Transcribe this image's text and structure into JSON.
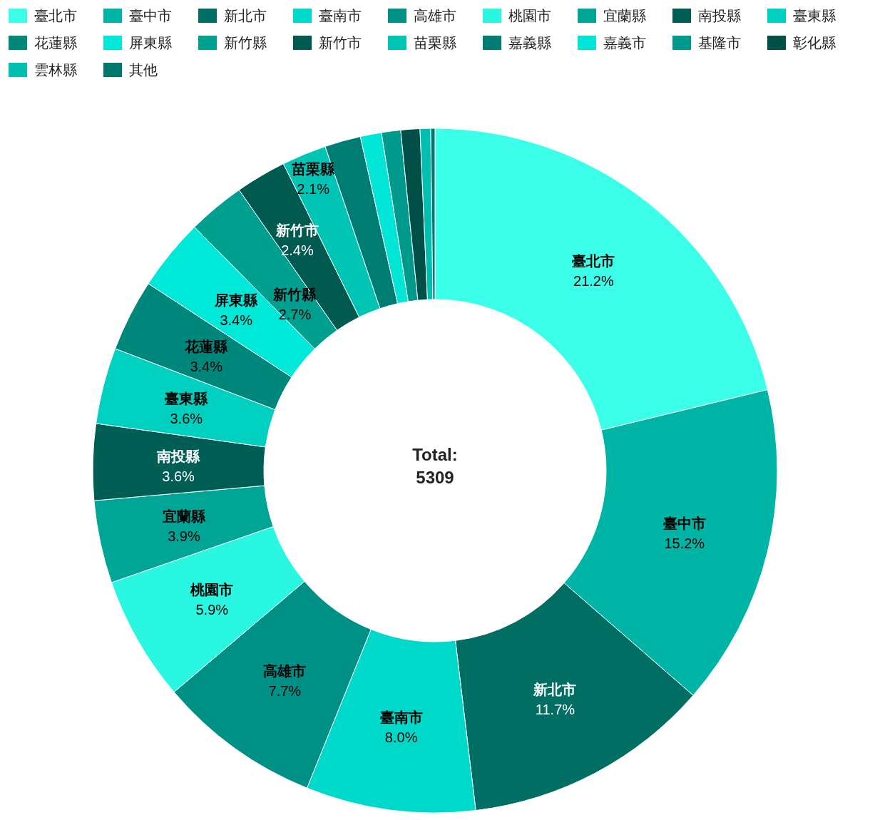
{
  "chart_data": {
    "type": "donut",
    "categories": [
      "臺北市",
      "臺中市",
      "新北市",
      "臺南市",
      "高雄市",
      "桃園市",
      "宜蘭縣",
      "南投縣",
      "臺東縣",
      "花蓮縣",
      "屏東縣",
      "新竹縣",
      "新竹市",
      "苗栗縣",
      "嘉義縣",
      "嘉義市",
      "基隆市",
      "彰化縣",
      "雲林縣",
      "其他"
    ],
    "values": [
      21.2,
      15.2,
      11.7,
      8.0,
      7.7,
      5.9,
      3.9,
      3.6,
      3.6,
      3.4,
      3.4,
      2.7,
      2.4,
      2.1,
      1.7,
      1.0,
      0.9,
      0.9,
      0.5,
      0.2
    ],
    "value_labels": [
      "21.2%",
      "15.2%",
      "11.7%",
      "8.0%",
      "7.7%",
      "5.9%",
      "3.9%",
      "3.6%",
      "3.6%",
      "3.4%",
      "3.4%",
      "2.7%",
      "2.4%",
      "2.1%",
      null,
      null,
      null,
      null,
      null,
      null
    ],
    "colors": [
      "#3bffe8",
      "#00b5a6",
      "#006e62",
      "#00d9c9",
      "#009085",
      "#2af7e2",
      "#00a596",
      "#005e55",
      "#00d0c0",
      "#00877b",
      "#00e8d8",
      "#00a090",
      "#005a50",
      "#00c5b5",
      "#007d72",
      "#00e5d5",
      "#009a8c",
      "#005048",
      "#00bfb0",
      "#00786d"
    ],
    "annotations": [
      "Total:",
      "5309"
    ],
    "legend": "top"
  }
}
